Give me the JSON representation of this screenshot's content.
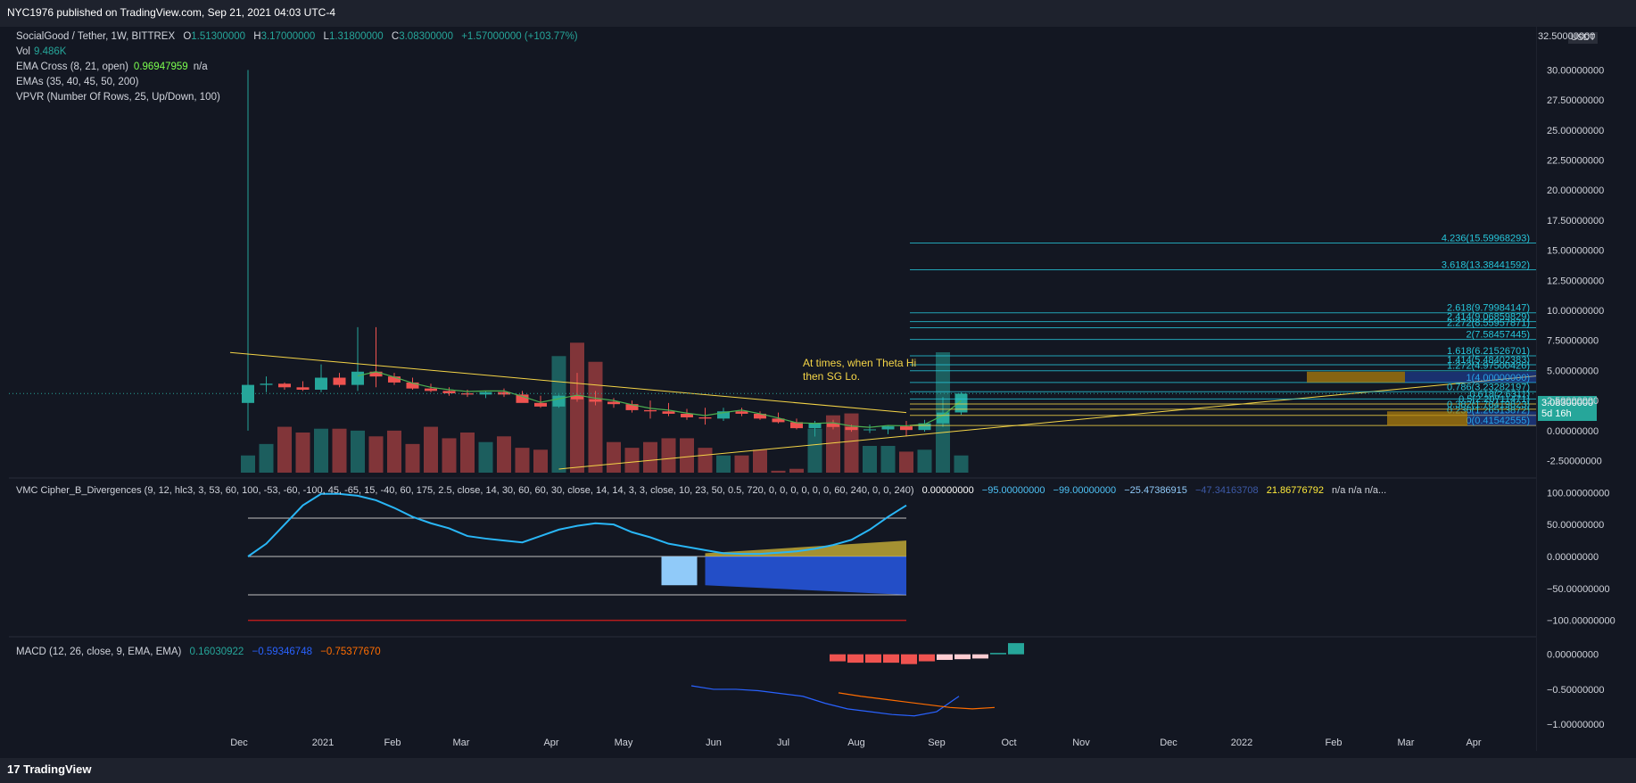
{
  "header": {
    "publisher": "NYC1976 published on TradingView.com, Sep 21, 2021 04:03 UTC-4"
  },
  "main_legend": {
    "symbol": "SocialGood / Tether, 1W, BITTREX",
    "o_label": "O",
    "o": "1.51300000",
    "h_label": "H",
    "h": "3.17000000",
    "l_label": "L",
    "l": "1.31800000",
    "c_label": "C",
    "c": "3.08300000",
    "change": "+1.57000000 (+103.77%)",
    "vol_label": "Vol",
    "vol": "9.486K",
    "ema_cross_label": "EMA Cross (8, 21, open)",
    "ema_cross_value": "0.96947959",
    "ema_cross_na": "n/a",
    "emas_label": "EMAs (35, 40, 45, 50, 200)",
    "vpvr_label": "VPVR (Number Of Rows, 25, Up/Down, 100)"
  },
  "annotation": {
    "line1": "At times, when Theta Hi",
    "line2": "then SG Lo."
  },
  "price_axis": {
    "currency": "USDT",
    "ticks": [
      "32.50000000",
      "30.00000000",
      "27.50000000",
      "25.00000000",
      "22.50000000",
      "20.00000000",
      "17.50000000",
      "15.00000000",
      "12.50000000",
      "10.00000000",
      "7.50000000",
      "5.00000000",
      "2.50000000",
      "0.00000000",
      "-2.50000000"
    ],
    "last_price": "3.08300000",
    "countdown": "5d 16h"
  },
  "fib_labels": [
    "4.236(15.59968293)",
    "3.618(13.38441592)",
    "2.618(9.79984147)",
    "2.414(9.06859829)",
    "2.272(8.55957871)",
    "2(7.58457445)",
    "1.618(6.21526701)",
    "1.414(5.48402383)",
    "1.272(4.97500426)",
    "1(4.00000000)",
    "0.786(3.23282197)",
    "0.618(2.6311)",
    "0.5(2.20711471)",
    "0.382(1.78419823)",
    "0.236(1.26513872)",
    "0(0.41542555)"
  ],
  "time_axis": {
    "labels": [
      "Dec",
      "2021",
      "Feb",
      "Mar",
      "Apr",
      "May",
      "Jun",
      "Jul",
      "Aug",
      "Sep",
      "Oct",
      "Nov",
      "Dec",
      "2022",
      "Feb",
      "Mar",
      "Apr"
    ]
  },
  "vmc_legend": {
    "label": "VMC Cipher_B_Divergences (9, 12, hlc3, 3, 53, 60, 100, -53, -60, -100, 45, -65, 15, -40, 60, 175, 2.5, close, 14, 30, 60, 60, 30, close, 14, 14, 3, 3, close, 10, 23, 50, 0.5, 720, 0, 0, 0, 0, 0, 0, 60, 240, 0, 0, 240)",
    "v1": "0.00000000",
    "v2": "−95.00000000",
    "v3": "−99.00000000",
    "v4": "−25.47386915",
    "v5": "−47.34163708",
    "v6": "21.86776792",
    "na": "n/a  n/a  n/a..."
  },
  "vmc_axis": [
    "100.00000000",
    "50.00000000",
    "0.00000000",
    "−50.00000000",
    "−100.00000000"
  ],
  "macd_legend": {
    "label": "MACD (12, 26, close, 9, EMA, EMA)",
    "hist": "0.16030922",
    "macd": "−0.59346748",
    "signal": "−0.75377670"
  },
  "macd_axis": [
    "0.00000000",
    "−0.50000000",
    "−1.00000000"
  ],
  "footer": {
    "brand": "TradingView"
  },
  "colors": {
    "up": "#26a69a",
    "down": "#ef5350",
    "bg": "#131722",
    "fib": "#26c6da",
    "annotation": "#f5d547"
  },
  "chart_data": [
    {
      "type": "candlestick",
      "title": "SocialGood / Tether, 1W, BITTREX",
      "ylabel": "USDT",
      "ylim": [
        -3.5,
        33
      ],
      "candles": [
        {
          "o": 2.3,
          "h": 30.0,
          "l": 0.0,
          "c": 3.8
        },
        {
          "o": 3.8,
          "h": 4.5,
          "l": 3.2,
          "c": 3.9
        },
        {
          "o": 3.9,
          "h": 4.0,
          "l": 3.4,
          "c": 3.6
        },
        {
          "o": 3.6,
          "h": 4.1,
          "l": 3.3,
          "c": 3.4
        },
        {
          "o": 3.4,
          "h": 5.5,
          "l": 3.2,
          "c": 4.4
        },
        {
          "o": 4.4,
          "h": 4.8,
          "l": 3.6,
          "c": 3.8
        },
        {
          "o": 3.8,
          "h": 8.6,
          "l": 3.3,
          "c": 4.9
        },
        {
          "o": 4.9,
          "h": 8.6,
          "l": 3.6,
          "c": 4.5
        },
        {
          "o": 4.5,
          "h": 4.8,
          "l": 3.8,
          "c": 4.0
        },
        {
          "o": 4.0,
          "h": 4.4,
          "l": 3.4,
          "c": 3.5
        },
        {
          "o": 3.5,
          "h": 3.9,
          "l": 3.2,
          "c": 3.3
        },
        {
          "o": 3.3,
          "h": 3.6,
          "l": 2.9,
          "c": 3.1
        },
        {
          "o": 3.1,
          "h": 3.4,
          "l": 2.8,
          "c": 3.0
        },
        {
          "o": 3.0,
          "h": 3.3,
          "l": 2.7,
          "c": 3.2
        },
        {
          "o": 3.2,
          "h": 3.5,
          "l": 2.8,
          "c": 3.0
        },
        {
          "o": 3.0,
          "h": 3.3,
          "l": 2.4,
          "c": 2.3
        },
        {
          "o": 2.3,
          "h": 2.9,
          "l": 1.9,
          "c": 2.0
        },
        {
          "o": 2.0,
          "h": 3.0,
          "l": 1.9,
          "c": 2.9
        },
        {
          "o": 2.9,
          "h": 4.8,
          "l": 2.4,
          "c": 2.6
        },
        {
          "o": 2.6,
          "h": 3.3,
          "l": 2.1,
          "c": 2.4
        },
        {
          "o": 2.4,
          "h": 2.7,
          "l": 1.9,
          "c": 2.2
        },
        {
          "o": 2.2,
          "h": 2.5,
          "l": 1.5,
          "c": 1.7
        },
        {
          "o": 1.7,
          "h": 2.5,
          "l": 1.0,
          "c": 1.6
        },
        {
          "o": 1.6,
          "h": 2.3,
          "l": 1.2,
          "c": 1.4
        },
        {
          "o": 1.4,
          "h": 1.8,
          "l": 0.9,
          "c": 1.1
        },
        {
          "o": 1.1,
          "h": 1.9,
          "l": 0.5,
          "c": 1.0
        },
        {
          "o": 1.0,
          "h": 1.9,
          "l": 0.8,
          "c": 1.6
        },
        {
          "o": 1.6,
          "h": 1.9,
          "l": 1.2,
          "c": 1.4
        },
        {
          "o": 1.4,
          "h": 1.6,
          "l": 0.9,
          "c": 1.0
        },
        {
          "o": 1.0,
          "h": 1.5,
          "l": 0.6,
          "c": 0.7
        },
        {
          "o": 0.7,
          "h": 1.0,
          "l": 0.1,
          "c": 0.2
        },
        {
          "o": 0.2,
          "h": 0.8,
          "l": -0.5,
          "c": 0.6
        },
        {
          "o": 0.6,
          "h": 0.9,
          "l": 0.1,
          "c": 0.3
        },
        {
          "o": 0.3,
          "h": 0.5,
          "l": -0.1,
          "c": 0.05
        },
        {
          "o": 0.05,
          "h": 0.5,
          "l": -0.2,
          "c": 0.1
        },
        {
          "o": 0.1,
          "h": 0.4,
          "l": -0.3,
          "c": 0.35
        },
        {
          "o": 0.35,
          "h": 0.8,
          "l": -0.5,
          "c": 0.05
        },
        {
          "o": 0.05,
          "h": 0.9,
          "l": -0.1,
          "c": 0.6
        },
        {
          "o": 0.6,
          "h": 2.8,
          "l": 0.3,
          "c": 1.5
        },
        {
          "o": 1.51,
          "h": 3.17,
          "l": 1.32,
          "c": 3.08
        }
      ],
      "volume": [
        0.9,
        1.5,
        2.4,
        2.1,
        2.3,
        2.3,
        2.2,
        1.9,
        2.2,
        1.5,
        2.4,
        1.8,
        2.1,
        1.6,
        1.9,
        1.3,
        1.2,
        6.1,
        6.8,
        5.8,
        1.6,
        1.3,
        1.6,
        1.8,
        1.8,
        1.3,
        0.9,
        0.9,
        1.2,
        0.1,
        0.2,
        2.3,
        3.0,
        3.1,
        1.4,
        1.4,
        1.1,
        1.2,
        6.3,
        0.9
      ]
    },
    {
      "type": "line",
      "title": "VMC Cipher_B_Divergences",
      "ylim": [
        -120,
        120
      ],
      "series": [
        {
          "values": [
            0,
            20,
            50,
            80,
            98,
            98,
            95,
            88,
            76,
            62,
            52,
            44,
            32,
            28,
            25,
            22,
            32,
            42,
            48,
            52,
            50,
            38,
            30,
            20,
            15,
            10,
            5,
            4,
            4,
            6,
            8,
            12,
            18,
            26,
            42,
            62,
            80
          ]
        }
      ]
    },
    {
      "type": "bar",
      "title": "MACD (12, 26, close, 9, EMA, EMA)",
      "ylim": [
        -1.1,
        0.2
      ],
      "histogram": [
        -0.1,
        -0.12,
        -0.12,
        -0.12,
        -0.14,
        -0.1,
        -0.08,
        -0.07,
        -0.06,
        0.02,
        0.16
      ],
      "series": [
        {
          "name": "MACD",
          "values": [
            -0.45,
            -0.5,
            -0.5,
            -0.52,
            -0.56,
            -0.6,
            -0.7,
            -0.78,
            -0.82,
            -0.86,
            -0.88,
            -0.82,
            -0.6
          ]
        },
        {
          "name": "Signal",
          "values": [
            -0.55,
            -0.6,
            -0.64,
            -0.68,
            -0.72,
            -0.76,
            -0.78,
            -0.76
          ]
        }
      ]
    }
  ]
}
